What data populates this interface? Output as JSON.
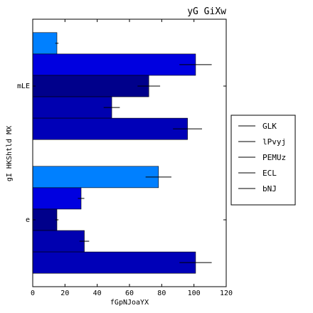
{
  "chart_data": {
    "type": "bar",
    "orientation": "horizontal",
    "title": "yG GiXw",
    "xlabel": "fGpNJoaYX",
    "ylabel": "gI HKShtld MX",
    "xlim": [
      0,
      120
    ],
    "xticks": [
      0,
      20,
      40,
      60,
      80,
      100,
      120
    ],
    "categories": [
      "e",
      "mLE"
    ],
    "series": [
      {
        "name": "GLK",
        "color": "#0080ff",
        "values": [
          78,
          15
        ],
        "errors": [
          8,
          1
        ]
      },
      {
        "name": "lPvyj",
        "color": "#0000e0",
        "values": [
          30,
          101
        ],
        "errors": [
          2,
          10
        ]
      },
      {
        "name": "PEMUz",
        "color": "#00008b",
        "values": [
          15,
          72
        ],
        "errors": [
          1,
          7
        ]
      },
      {
        "name": "ECL",
        "color": "#0000b0",
        "values": [
          32,
          49
        ],
        "errors": [
          3,
          5
        ]
      },
      {
        "name": "bNJ",
        "color": "#0000b8",
        "values": [
          101,
          96
        ],
        "errors": [
          10,
          9
        ]
      }
    ],
    "legend_position": "center-right",
    "grid": false
  }
}
